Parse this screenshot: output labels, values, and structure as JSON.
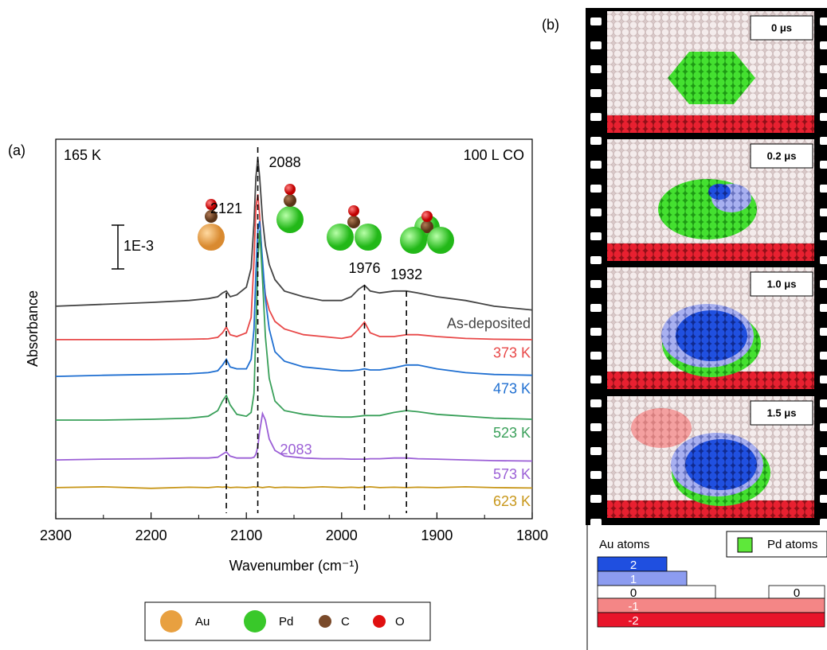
{
  "chart_data": {
    "type": "line",
    "panel_label": "(a)",
    "x_label": "Wavenumber (cm⁻¹)",
    "y_label": "Absorbance",
    "annotation_left": "165 K",
    "annotation_right": "100 L CO",
    "scale_bar": "1E-3",
    "xlim": [
      2300,
      1800
    ],
    "xticks": [
      2300,
      2200,
      2100,
      2000,
      1900,
      1800
    ],
    "xminorticks": [
      2250,
      2150,
      2050,
      1950,
      1850
    ],
    "ylim": [
      0,
      10
    ],
    "peaks": [
      2121,
      2088,
      1976,
      1932
    ],
    "peaks_unmarked": [
      2083
    ],
    "x": [
      2300,
      2250,
      2200,
      2160,
      2140,
      2130,
      2125,
      2121,
      2117,
      2110,
      2100,
      2095,
      2092,
      2090,
      2088,
      2086,
      2083,
      2080,
      2076,
      2070,
      2060,
      2040,
      2020,
      2000,
      1990,
      1982,
      1976,
      1970,
      1960,
      1945,
      1932,
      1920,
      1900,
      1870,
      1840,
      1800
    ],
    "series": [
      {
        "name": "As-deposited",
        "color": "#444444",
        "values": [
          5.6,
          5.65,
          5.7,
          5.75,
          5.8,
          5.85,
          5.95,
          6.0,
          5.85,
          5.9,
          6.1,
          6.6,
          7.8,
          9.0,
          9.5,
          9.0,
          7.9,
          7.2,
          6.7,
          6.3,
          6.0,
          5.85,
          5.75,
          5.75,
          5.85,
          6.05,
          6.15,
          6.0,
          5.95,
          6.0,
          6.0,
          5.95,
          5.85,
          5.75,
          5.6,
          5.5
        ]
      },
      {
        "name": "373 K",
        "color": "#e84848",
        "values": [
          4.72,
          4.72,
          4.72,
          4.73,
          4.74,
          4.78,
          4.9,
          5.05,
          4.85,
          4.8,
          4.9,
          5.3,
          6.8,
          8.2,
          8.55,
          8.0,
          6.6,
          5.9,
          5.5,
          5.2,
          5.0,
          4.85,
          4.8,
          4.75,
          4.8,
          5.0,
          5.18,
          4.9,
          4.8,
          4.8,
          4.85,
          4.85,
          4.8,
          4.75,
          4.73,
          4.72
        ]
      },
      {
        "name": "473 K",
        "color": "#1f6fd1",
        "values": [
          3.75,
          3.78,
          3.8,
          3.82,
          3.85,
          3.9,
          4.05,
          4.2,
          4.0,
          3.95,
          3.95,
          4.2,
          5.0,
          6.5,
          7.6,
          7.84,
          6.8,
          5.8,
          5.0,
          4.4,
          4.15,
          4.0,
          3.95,
          3.9,
          3.9,
          3.92,
          3.95,
          3.92,
          3.92,
          3.98,
          4.05,
          4.05,
          3.95,
          3.85,
          3.8,
          3.78
        ]
      },
      {
        "name": "523 K",
        "color": "#3aa05a",
        "values": [
          2.6,
          2.6,
          2.62,
          2.65,
          2.7,
          2.85,
          3.1,
          3.25,
          3.0,
          2.75,
          2.7,
          2.8,
          3.3,
          5.0,
          6.8,
          7.6,
          6.3,
          4.8,
          3.7,
          3.1,
          2.85,
          2.75,
          2.7,
          2.68,
          2.68,
          2.7,
          2.72,
          2.72,
          2.72,
          2.8,
          2.85,
          2.82,
          2.75,
          2.7,
          2.65,
          2.62
        ]
      },
      {
        "name": "573 K",
        "color": "#9b5fd6",
        "values": [
          1.55,
          1.57,
          1.58,
          1.6,
          1.6,
          1.62,
          1.7,
          1.76,
          1.65,
          1.6,
          1.6,
          1.6,
          1.62,
          1.7,
          1.9,
          2.3,
          2.77,
          2.6,
          2.1,
          1.8,
          1.65,
          1.6,
          1.58,
          1.58,
          1.57,
          1.57,
          1.57,
          1.58,
          1.58,
          1.6,
          1.6,
          1.58,
          1.57,
          1.55,
          1.53,
          1.52
        ]
      },
      {
        "name": "623 K",
        "color": "#c8971a",
        "values": [
          0.82,
          0.84,
          0.8,
          0.83,
          0.82,
          0.84,
          0.83,
          0.84,
          0.82,
          0.83,
          0.82,
          0.83,
          0.84,
          0.83,
          0.84,
          0.83,
          0.82,
          0.83,
          0.84,
          0.82,
          0.83,
          0.82,
          0.84,
          0.82,
          0.83,
          0.82,
          0.83,
          0.84,
          0.82,
          0.83,
          0.82,
          0.83,
          0.82,
          0.84,
          0.82,
          0.81
        ]
      }
    ],
    "atom_legend": [
      {
        "name": "Au",
        "color": "#e8a040"
      },
      {
        "name": "Pd",
        "color": "#39c82a"
      },
      {
        "name": "C",
        "color": "#7a4a2a"
      },
      {
        "name": "O",
        "color": "#e01010"
      }
    ]
  },
  "panel_b": {
    "label": "(b)",
    "frames": [
      "0 μs",
      "0.2 μs",
      "1.0 μs",
      "1.5 μs"
    ],
    "legend": {
      "au_title": "Au atoms",
      "pd_label": "Pd atoms",
      "pd_color": "#5ee83a",
      "scale": [
        {
          "label": "2",
          "color": "#1f4fe0"
        },
        {
          "label": "1",
          "color": "#8c9cf0"
        },
        {
          "label": "0",
          "color": "#ffffff"
        },
        {
          "label": "0",
          "color": "#ffffff"
        },
        {
          "label": "-1",
          "color": "#f48686"
        },
        {
          "label": "-2",
          "color": "#e8142a"
        }
      ]
    }
  }
}
